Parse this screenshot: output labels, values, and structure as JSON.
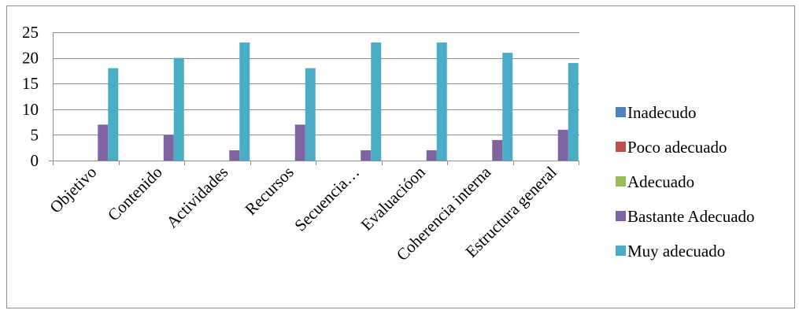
{
  "chart_data": {
    "type": "bar",
    "title": "",
    "xlabel": "",
    "ylabel": "",
    "ylim": [
      0,
      25
    ],
    "yticks": [
      0,
      5,
      10,
      15,
      20,
      25
    ],
    "grid": true,
    "legend_position": "right",
    "categories": [
      "Objetivo",
      "Contenido",
      "Actividades",
      "Recursos",
      "Secuencia…",
      "Evaluacióon",
      "Coherencia interna",
      "Estructura general"
    ],
    "series": [
      {
        "name": "Inadecudo",
        "color": "#4F81BD",
        "values": [
          0,
          0,
          0,
          0,
          0,
          0,
          0,
          0
        ]
      },
      {
        "name": "Poco adecuado",
        "color": "#C0504D",
        "values": [
          0,
          0,
          0,
          0,
          0,
          0,
          0,
          0
        ]
      },
      {
        "name": "Adecuado",
        "color": "#9BBB59",
        "values": [
          0,
          0,
          0,
          0,
          0,
          0,
          0,
          0
        ]
      },
      {
        "name": "Bastante Adecuado",
        "color": "#8064A2",
        "values": [
          7,
          5,
          2,
          7,
          2,
          2,
          4,
          6
        ]
      },
      {
        "name": "Muy adecuado",
        "color": "#4BACC6",
        "values": [
          18,
          20,
          23,
          18,
          23,
          23,
          21,
          19
        ]
      }
    ]
  }
}
